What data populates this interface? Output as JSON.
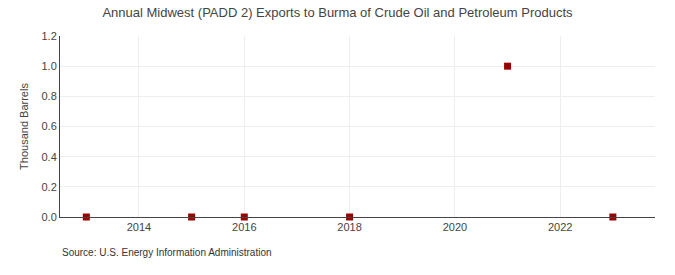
{
  "chart_data": {
    "type": "scatter",
    "title": "Annual Midwest (PADD 2) Exports to Burma of Crude Oil and Petroleum Products",
    "ylabel": "Thousand Barrels",
    "source": "Source: U.S. Energy Information Administration",
    "x": [
      2013,
      2015,
      2016,
      2018,
      2021,
      2023
    ],
    "values": [
      0.0,
      0.0,
      0.0,
      0.0,
      1.0,
      0.0
    ],
    "color": "#990000",
    "marker": "square",
    "xlim": [
      2012.5,
      2023.8
    ],
    "ylim": [
      0.0,
      1.2
    ],
    "xticks": [
      2014,
      2016,
      2018,
      2020,
      2022
    ],
    "yticks": [
      {
        "value": 0.0,
        "label": "0.0"
      },
      0.2,
      0.4,
      0.6,
      0.8,
      {
        "value": 1.0,
        "label": "1.0"
      },
      1.2
    ],
    "grid": true
  }
}
